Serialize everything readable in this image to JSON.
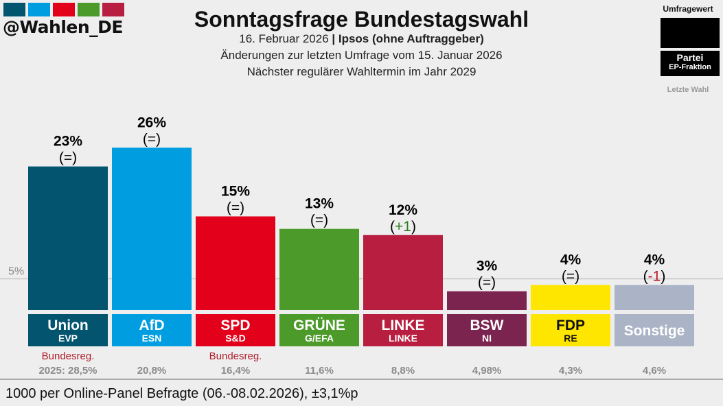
{
  "header": {
    "handle": "@Wahlen_DE",
    "logo_colors": [
      "#02546f",
      "#009ee0",
      "#e2001a",
      "#4c9a2a",
      "#b71e3f"
    ],
    "title": "Sonntagsfrage Bundestagswahl",
    "date": "16. Februar 2026",
    "sep": " | ",
    "institute": "Ipsos (ohne Auftraggeber)",
    "changes_note": "Änderungen zur letzten Umfrage vom 15. Januar 2026",
    "next_election": "Nächster regulärer Wahltermin im Jahr 2029"
  },
  "legend": {
    "value": "Umfragewert",
    "party": "Partei",
    "fraction": "EP-Fraktion",
    "last": "Letzte Wahl"
  },
  "chart_data": {
    "type": "bar",
    "ylim": [
      0,
      26
    ],
    "reference_line": {
      "value": 5,
      "label": "5%"
    },
    "categories": [
      "Union",
      "AfD",
      "SPD",
      "GRÜNE",
      "LINKE",
      "BSW",
      "FDP",
      "Sonstige"
    ],
    "fractions": [
      "EVP",
      "ESN",
      "S&D",
      "G/EFA",
      "LINKE",
      "NI",
      "RE",
      ""
    ],
    "values": [
      23,
      26,
      15,
      13,
      12,
      3,
      4,
      4
    ],
    "labels": [
      "23%",
      "26%",
      "15%",
      "13%",
      "12%",
      "3%",
      "4%",
      "4%"
    ],
    "changes": [
      "=",
      "=",
      "=",
      "=",
      "+1",
      "=",
      "=",
      "-1"
    ],
    "colors": [
      "#02546f",
      "#009ee0",
      "#e2001a",
      "#4c9a2a",
      "#b71e3f",
      "#7b2450",
      "#ffe600",
      "#aab4c6"
    ],
    "name_colors": [
      "#ffffff",
      "#ffffff",
      "#ffffff",
      "#ffffff",
      "#ffffff",
      "#ffffff",
      "#111111",
      "#ffffff"
    ],
    "government": [
      "Bundesreg.",
      "",
      "Bundesreg.",
      "",
      "",
      "",
      "",
      ""
    ],
    "last_election": [
      "2025: 28,5%",
      "20,8%",
      "16,4%",
      "11,6%",
      "8,8%",
      "4,98%",
      "4,3%",
      "4,6%"
    ],
    "change_colors": {
      "up": "#2e7d1e",
      "down": "#c0141e",
      "same": "#111111"
    }
  },
  "footer": {
    "text": "1000 per Online-Panel Befragte (06.-08.02.2026), ±3,1%p"
  }
}
